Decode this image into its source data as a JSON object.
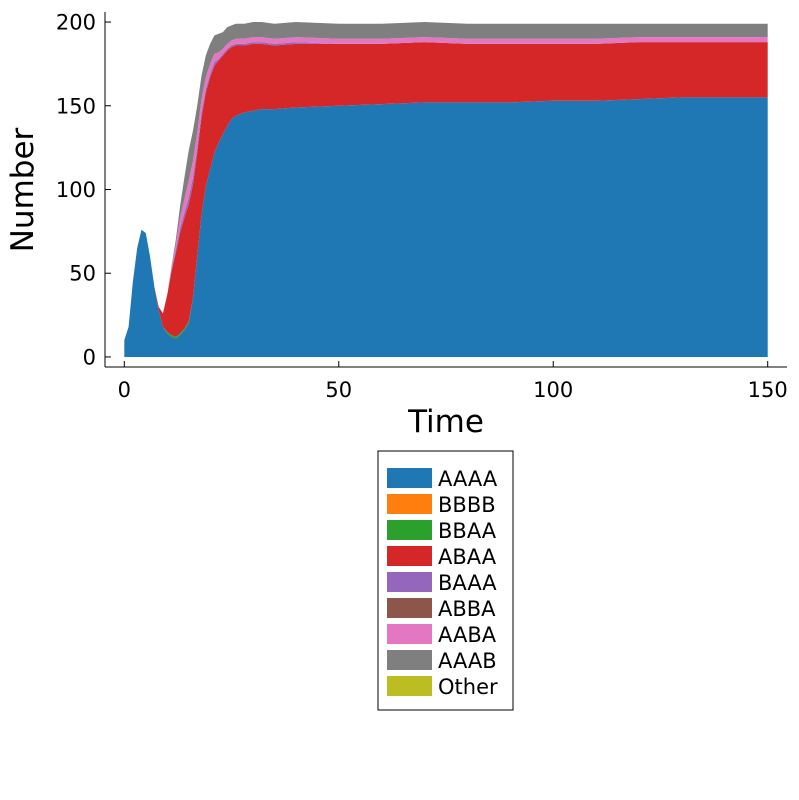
{
  "chart_data": {
    "type": "area",
    "stacked": true,
    "xlabel": "Time",
    "ylabel": "Number",
    "xlim": [
      -4.5,
      154.5
    ],
    "ylim": [
      -6,
      206
    ],
    "xticks": [
      0,
      50,
      100,
      150
    ],
    "yticks": [
      0,
      50,
      100,
      150,
      200
    ],
    "grid": false,
    "legend_position": "bottom-outside",
    "x": [
      0,
      1,
      2,
      3,
      4,
      5,
      6,
      7,
      8,
      9,
      10,
      11,
      12,
      13,
      14,
      15,
      16,
      17,
      18,
      19,
      20,
      21,
      22,
      23,
      24,
      25,
      26,
      27,
      28,
      30,
      32,
      35,
      40,
      50,
      60,
      70,
      80,
      90,
      100,
      110,
      120,
      130,
      140,
      150
    ],
    "series": [
      {
        "name": "AAAA",
        "color": "#1f77b4",
        "values": [
          10,
          18,
          45,
          65,
          76,
          74,
          60,
          42,
          28,
          18,
          14,
          12,
          11,
          13,
          16,
          20,
          35,
          60,
          85,
          102,
          112,
          122,
          128,
          133,
          138,
          142,
          144,
          145,
          146,
          147,
          148,
          148,
          149,
          150,
          151,
          152,
          152,
          152,
          153,
          153,
          154,
          155,
          155,
          155
        ]
      },
      {
        "name": "BBBB",
        "color": "#ff7f0e",
        "values": [
          0,
          0,
          0,
          0,
          0,
          0,
          0,
          0,
          0,
          0,
          0,
          0,
          0,
          0,
          0,
          0,
          0,
          0,
          0,
          0,
          0,
          0,
          0,
          0,
          0,
          0,
          0,
          0,
          0,
          0,
          0,
          0,
          0,
          0,
          0,
          0,
          0,
          0,
          0,
          0,
          0,
          0,
          0,
          0
        ]
      },
      {
        "name": "BBAA",
        "color": "#2ca02c",
        "values": [
          0,
          0,
          0,
          0,
          0,
          0,
          0,
          0,
          0,
          0,
          1,
          1,
          1,
          1,
          1,
          1,
          0,
          0,
          0,
          0,
          0,
          0,
          0,
          0,
          0,
          0,
          0,
          0,
          0,
          0,
          0,
          0,
          0,
          0,
          0,
          0,
          0,
          0,
          0,
          0,
          0,
          0,
          0,
          0
        ]
      },
      {
        "name": "ABAA",
        "color": "#d62728",
        "values": [
          0,
          0,
          0,
          0,
          0,
          0,
          0,
          0,
          2,
          8,
          22,
          38,
          50,
          60,
          66,
          70,
          68,
          62,
          58,
          56,
          55,
          52,
          49,
          47,
          45,
          43,
          42,
          41,
          40,
          40,
          39,
          38,
          38,
          37,
          36,
          36,
          35,
          35,
          34,
          34,
          34,
          33,
          33,
          33
        ]
      },
      {
        "name": "BAAA",
        "color": "#9467bd",
        "values": [
          0,
          0,
          0,
          0,
          0,
          0,
          0,
          0,
          0,
          0,
          0,
          1,
          2,
          3,
          3,
          4,
          4,
          3,
          3,
          2,
          2,
          2,
          1,
          1,
          1,
          1,
          1,
          1,
          1,
          1,
          1,
          1,
          1,
          0,
          0,
          0,
          0,
          0,
          0,
          0,
          0,
          0,
          0,
          0
        ]
      },
      {
        "name": "ABBA",
        "color": "#8c564b",
        "values": [
          0,
          0,
          0,
          0,
          0,
          0,
          0,
          0,
          0,
          0,
          0,
          0,
          0,
          0,
          0,
          0,
          0,
          0,
          0,
          0,
          0,
          0,
          0,
          0,
          0,
          0,
          0,
          0,
          0,
          0,
          0,
          0,
          0,
          0,
          0,
          0,
          0,
          0,
          0,
          0,
          0,
          0,
          0,
          0
        ]
      },
      {
        "name": "AABA",
        "color": "#e377c2",
        "values": [
          0,
          0,
          0,
          0,
          0,
          0,
          0,
          0,
          0,
          0,
          0,
          1,
          3,
          6,
          8,
          10,
          10,
          9,
          8,
          7,
          6,
          5,
          4,
          3,
          3,
          3,
          3,
          3,
          3,
          3,
          3,
          3,
          3,
          3,
          3,
          3,
          3,
          3,
          3,
          3,
          3,
          3,
          3,
          3
        ]
      },
      {
        "name": "AAAB",
        "color": "#7f7f7f",
        "values": [
          0,
          0,
          0,
          0,
          0,
          0,
          0,
          0,
          0,
          0,
          0,
          1,
          3,
          7,
          13,
          18,
          18,
          16,
          14,
          13,
          12,
          11,
          11,
          10,
          10,
          9,
          9,
          9,
          9,
          9,
          9,
          9,
          9,
          9,
          9,
          9,
          9,
          9,
          9,
          9,
          8,
          8,
          8,
          8
        ]
      },
      {
        "name": "Other",
        "color": "#bcbd22",
        "values": [
          0,
          0,
          0,
          0,
          0,
          0,
          0,
          0,
          0,
          0,
          0,
          0,
          0,
          0,
          0,
          0,
          0,
          0,
          0,
          0,
          0,
          0,
          0,
          0,
          0,
          0,
          0,
          0,
          0,
          0,
          0,
          0,
          0,
          0,
          0,
          0,
          0,
          0,
          0,
          0,
          0,
          0,
          0,
          0
        ]
      }
    ]
  }
}
